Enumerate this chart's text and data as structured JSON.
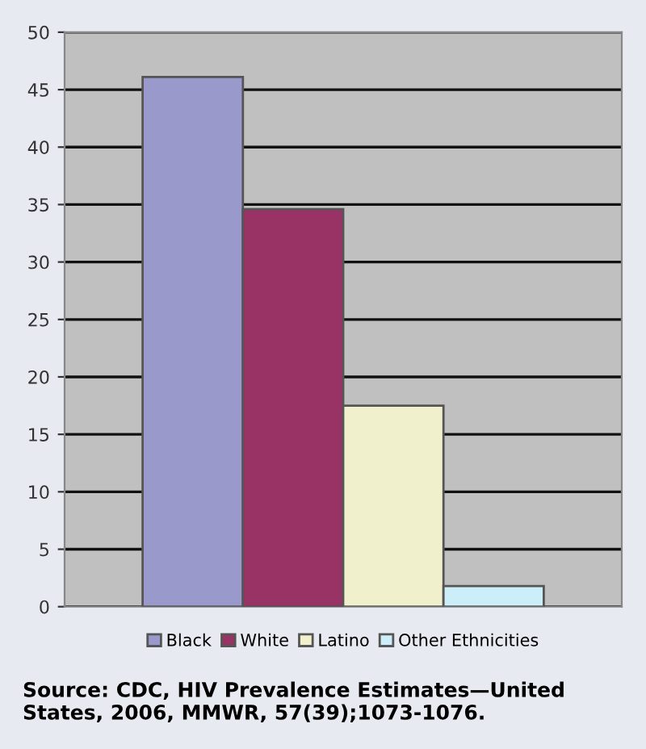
{
  "chart_data": {
    "type": "bar",
    "categories": [
      null
    ],
    "series": [
      {
        "name": "Black",
        "color": "#9999cc",
        "values": [
          46.1
        ]
      },
      {
        "name": "White",
        "color": "#993366",
        "values": [
          34.6
        ]
      },
      {
        "name": "Latino",
        "color": "#f0f0cc",
        "values": [
          17.5
        ]
      },
      {
        "name": "Other Ethnicities",
        "color": "#cceef8",
        "values": [
          1.8
        ]
      }
    ],
    "ylim": [
      0,
      50
    ],
    "yticks": [
      0,
      5,
      10,
      15,
      20,
      25,
      30,
      35,
      40,
      45,
      50
    ],
    "grid": "y",
    "legend": "bottom",
    "annotations": [
      "Source: CDC, HIV Prevalence Estimates—United States, 2006, MMWR, 57(39);1073-1076."
    ]
  }
}
